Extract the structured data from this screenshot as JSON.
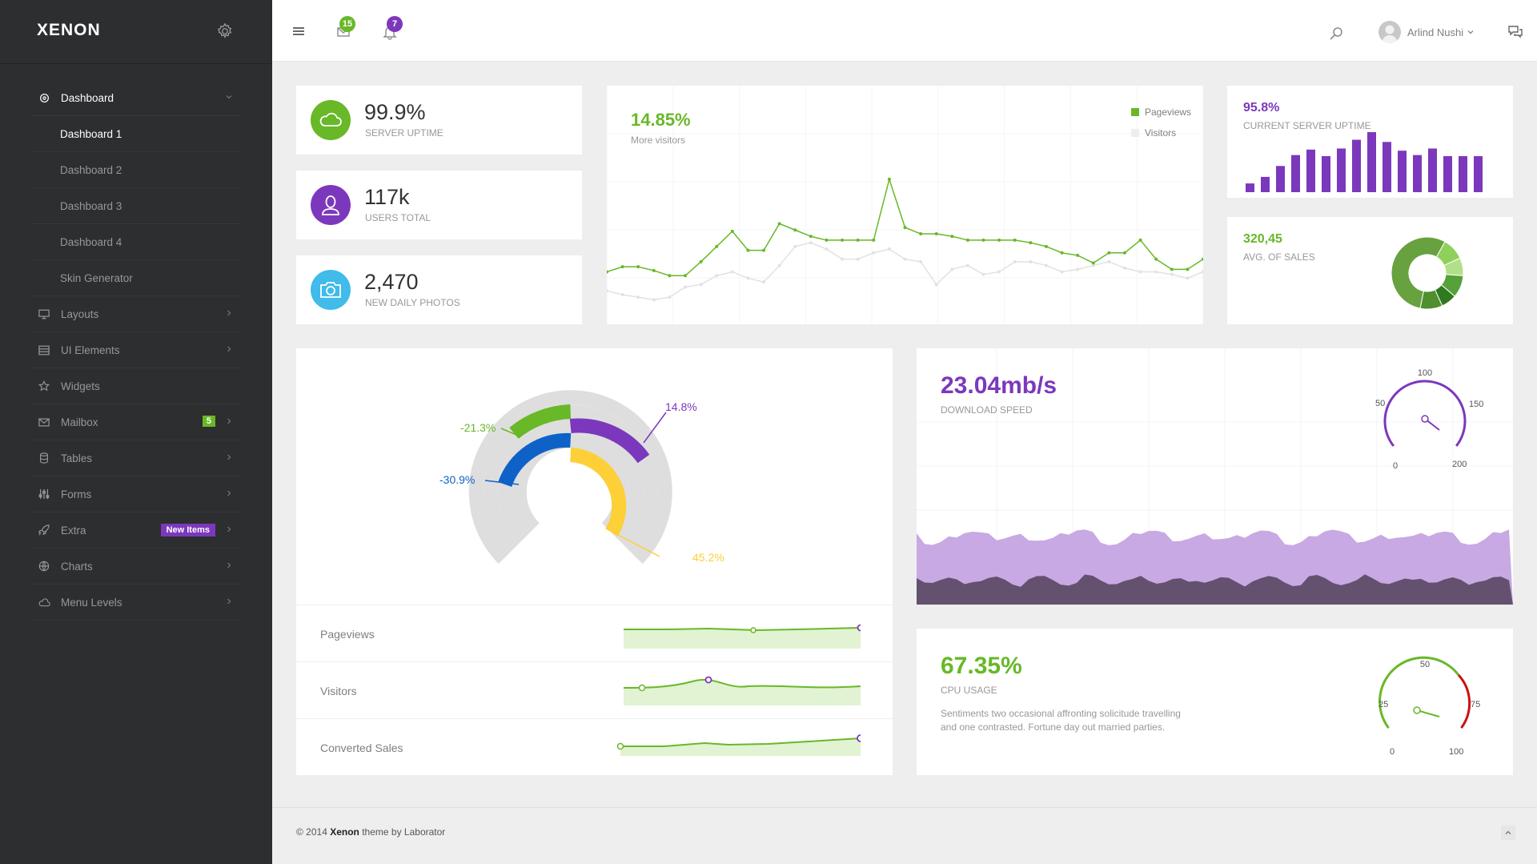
{
  "app": {
    "logo": "XENON"
  },
  "sidebar": {
    "items": [
      {
        "label": "Dashboard",
        "icon": "gauge-icon",
        "active": true
      },
      {
        "label": "Layouts",
        "icon": "monitor-icon"
      },
      {
        "label": "UI Elements",
        "icon": "layout-icon"
      },
      {
        "label": "Widgets",
        "icon": "star-icon"
      },
      {
        "label": "Mailbox",
        "icon": "envelope-icon",
        "badge": "5"
      },
      {
        "label": "Tables",
        "icon": "database-icon"
      },
      {
        "label": "Forms",
        "icon": "sliders-icon"
      },
      {
        "label": "Extra",
        "icon": "rocket-icon",
        "badge": "New Items"
      },
      {
        "label": "Charts",
        "icon": "globe-icon"
      },
      {
        "label": "Menu Levels",
        "icon": "cloud-icon"
      }
    ],
    "submenu": [
      "Dashboard 1",
      "Dashboard 2",
      "Dashboard 3",
      "Dashboard 4",
      "Skin Generator"
    ]
  },
  "topbar": {
    "messages_count": "15",
    "notifications_count": "7",
    "user_name": "Arlind Nushi"
  },
  "stats": [
    {
      "value": "99.9%",
      "label": "SERVER UPTIME",
      "color": "#68b828",
      "icon": "cloud-icon"
    },
    {
      "value": "117k",
      "label": "USERS TOTAL",
      "color": "#7c38bc",
      "icon": "user-icon"
    },
    {
      "value": "2,470",
      "label": "NEW DAILY PHOTOS",
      "color": "#40bbea",
      "icon": "camera-icon"
    }
  ],
  "visitors_chart": {
    "value": "14.85%",
    "label": "More visitors",
    "legend": [
      "Pageviews",
      "Visitors"
    ]
  },
  "uptime_card": {
    "value": "95.8%",
    "label": "CURRENT SERVER UPTIME"
  },
  "sales_card": {
    "value": "320,45",
    "label": "AVG. OF SALES"
  },
  "radial": {
    "labels": [
      "14.8%",
      "-21.3%",
      "-30.9%",
      "45.2%"
    ]
  },
  "kpi_rows": [
    "Pageviews",
    "Visitors",
    "Converted Sales"
  ],
  "download": {
    "value": "23.04mb/s",
    "label": "DOWNLOAD SPEED",
    "gauge_ticks": [
      "100",
      "50",
      "150",
      "0",
      "200"
    ]
  },
  "cpu": {
    "value": "67.35%",
    "label": "CPU USAGE",
    "description": "Sentiments two occasional affronting solicitude travelling and one contrasted. Fortune day out married parties.",
    "gauge_ticks": [
      "50",
      "25",
      "75",
      "0",
      "100"
    ]
  },
  "footer": {
    "prefix": "© 2014 ",
    "brand": "Xenon",
    "suffix": " theme by Laborator"
  },
  "colors": {
    "green": "#68b828",
    "purple": "#7c38bc",
    "blue": "#0e62c7",
    "yellow": "#fcd036",
    "cyan": "#40bbea",
    "sidebar": "#2c2e2f"
  },
  "chart_data": [
    {
      "type": "line",
      "series": [
        {
          "name": "Pageviews",
          "values": [
            30,
            34,
            34,
            31,
            27,
            27,
            38,
            50,
            62,
            47,
            47,
            68,
            63,
            58,
            55,
            55,
            55,
            55,
            103,
            65,
            60,
            60,
            58,
            55,
            55,
            55,
            55,
            53,
            50,
            45,
            43,
            37,
            45,
            45,
            55,
            40,
            32,
            32,
            40
          ]
        },
        {
          "name": "Visitors",
          "values": [
            15,
            12,
            10,
            8,
            10,
            18,
            20,
            27,
            30,
            25,
            22,
            35,
            50,
            53,
            48,
            40,
            40,
            45,
            48,
            40,
            38,
            20,
            32,
            35,
            28,
            30,
            38,
            38,
            35,
            30,
            32,
            35,
            38,
            33,
            30,
            30,
            28,
            25,
            30
          ]
        }
      ]
    },
    {
      "type": "bar",
      "values": [
        8,
        14,
        24,
        34,
        39,
        33,
        40,
        48,
        55,
        46,
        38,
        34,
        40,
        33,
        33,
        33
      ]
    },
    {
      "type": "pie",
      "values": [
        55,
        10,
        8,
        10,
        7,
        10
      ]
    }
  ]
}
